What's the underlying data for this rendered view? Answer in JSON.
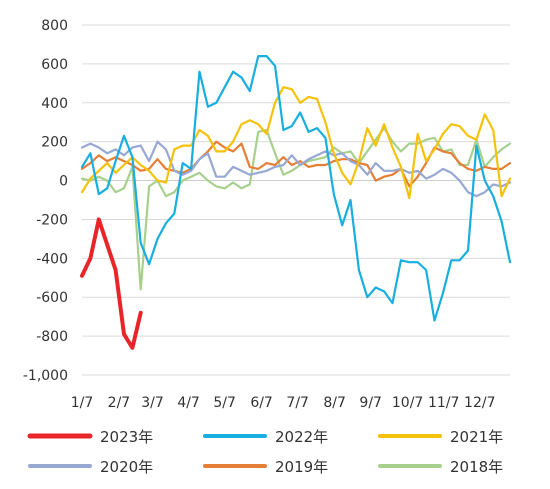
{
  "chart_data": {
    "type": "line",
    "title": "",
    "xlabel": "",
    "ylabel": "",
    "ylim": [
      -1000,
      800
    ],
    "y_ticks": [
      800,
      600,
      400,
      200,
      0,
      -200,
      -400,
      -600,
      -800,
      -1000
    ],
    "y_tick_labels": [
      "800",
      "600",
      "400",
      "200",
      "0",
      "-200",
      "-400",
      "-600",
      "-800",
      "-1,000"
    ],
    "x_range": [
      1,
      52
    ],
    "x_ticks": [
      1,
      5.4,
      9.4,
      13.7,
      18,
      22.4,
      26.7,
      31.1,
      35.4,
      39.8,
      44.1,
      48.4
    ],
    "x_tick_labels": [
      "1/7",
      "2/7",
      "3/7",
      "4/7",
      "5/7",
      "6/7",
      "7/7",
      "8/7",
      "9/7",
      "10/7",
      "11/7",
      "12/7"
    ],
    "grid": true,
    "legend_position": "bottom",
    "series": [
      {
        "name": "2023年",
        "color": "#e8262a",
        "width": 4,
        "values": [
          -490,
          -400,
          -200,
          -330,
          -460,
          -790,
          -860,
          -680
        ]
      },
      {
        "name": "2022年",
        "color": "#19aee0",
        "width": 2.2,
        "values": [
          70,
          140,
          -70,
          -40,
          100,
          230,
          120,
          -320,
          -430,
          -300,
          -220,
          -170,
          90,
          60,
          560,
          380,
          400,
          480,
          560,
          530,
          460,
          640,
          640,
          590,
          260,
          280,
          350,
          250,
          270,
          220,
          -70,
          -230,
          -100,
          -460,
          -600,
          -550,
          -570,
          -630,
          -410,
          -420,
          -420,
          -460,
          -720,
          -580,
          -410,
          -410,
          -360,
          180,
          0,
          -80,
          -210,
          -420
        ]
      },
      {
        "name": "2021年",
        "color": "#f5c20b",
        "width": 2.2,
        "values": [
          -60,
          10,
          50,
          90,
          40,
          80,
          120,
          80,
          50,
          0,
          -10,
          160,
          180,
          180,
          260,
          230,
          150,
          150,
          200,
          290,
          310,
          290,
          240,
          400,
          480,
          470,
          400,
          430,
          420,
          300,
          140,
          40,
          -20,
          100,
          270,
          180,
          290,
          170,
          70,
          -90,
          240,
          100,
          160,
          240,
          290,
          280,
          230,
          210,
          340,
          260,
          -80,
          10
        ]
      },
      {
        "name": "2020年",
        "color": "#98a8d4",
        "width": 2.2,
        "values": [
          170,
          190,
          170,
          140,
          160,
          130,
          170,
          180,
          100,
          200,
          160,
          50,
          30,
          50,
          110,
          140,
          20,
          20,
          70,
          50,
          30,
          40,
          50,
          70,
          80,
          130,
          80,
          110,
          130,
          150,
          130,
          140,
          100,
          80,
          30,
          90,
          50,
          50,
          60,
          40,
          50,
          10,
          30,
          60,
          40,
          0,
          -60,
          -80,
          -60,
          -20,
          -30,
          -10
        ]
      },
      {
        "name": "2019年",
        "color": "#e67e35",
        "width": 2.2,
        "values": [
          60,
          90,
          130,
          100,
          120,
          100,
          80,
          50,
          60,
          110,
          60,
          50,
          40,
          60,
          110,
          150,
          200,
          170,
          150,
          190,
          70,
          60,
          90,
          80,
          120,
          80,
          100,
          70,
          80,
          80,
          100,
          110,
          110,
          90,
          80,
          0,
          20,
          30,
          60,
          -30,
          20,
          90,
          170,
          150,
          140,
          90,
          60,
          50,
          70,
          60,
          60,
          90
        ]
      },
      {
        "name": "2018年",
        "color": "#a8d08d",
        "width": 2.2,
        "values": [
          10,
          0,
          20,
          0,
          -60,
          -40,
          70,
          -560,
          -30,
          0,
          -80,
          -60,
          0,
          20,
          40,
          0,
          -30,
          -40,
          -10,
          -40,
          -20,
          250,
          260,
          140,
          30,
          50,
          80,
          100,
          110,
          120,
          170,
          140,
          150,
          90,
          150,
          210,
          270,
          200,
          150,
          190,
          190,
          210,
          220,
          150,
          160,
          80,
          80,
          210,
          70,
          120,
          160,
          190
        ]
      }
    ]
  }
}
